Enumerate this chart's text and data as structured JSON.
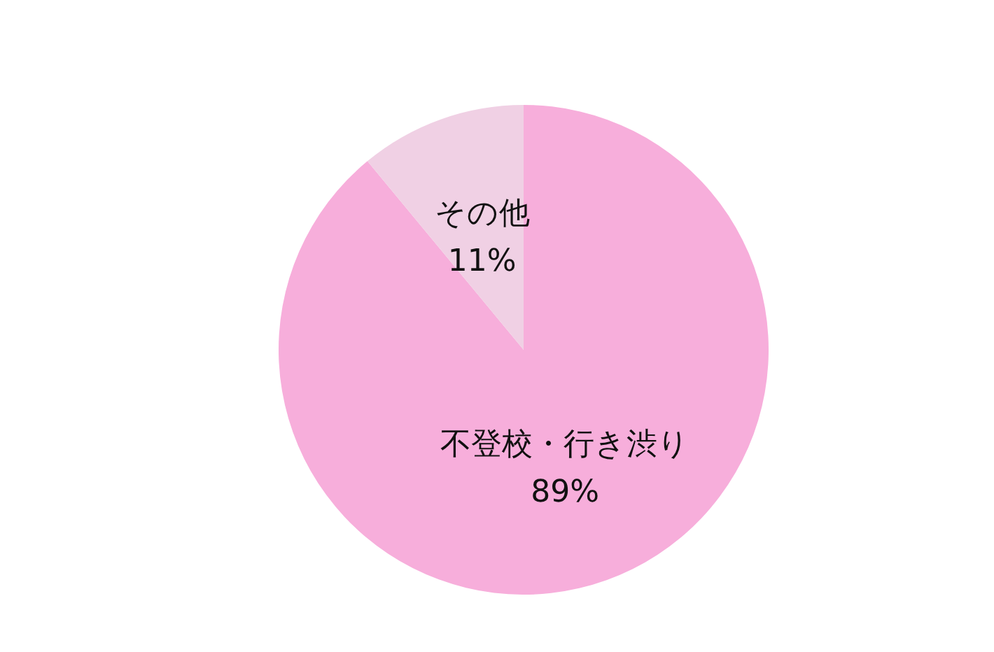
{
  "chart_data": {
    "type": "pie",
    "categories": [
      "不登校・行き渋り",
      "その他"
    ],
    "values": [
      89,
      11
    ],
    "colors": [
      "#f7aedb",
      "#f0d0e4"
    ],
    "value_labels": [
      "89%",
      "11%"
    ]
  }
}
